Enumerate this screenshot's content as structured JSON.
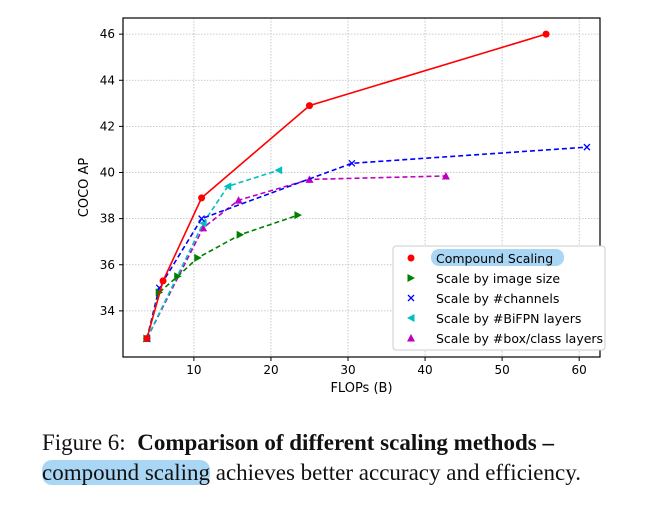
{
  "chart_data": {
    "type": "line",
    "xlabel": "FLOPs (B)",
    "ylabel": "COCO AP",
    "xlim": [
      0.8,
      62.7
    ],
    "ylim": [
      32.0,
      46.7
    ],
    "xticks": [
      10,
      20,
      30,
      40,
      50,
      60
    ],
    "yticks": [
      34,
      36,
      38,
      40,
      42,
      44,
      46
    ],
    "grid": true,
    "legend_position": "bottom-right",
    "series": [
      {
        "name": "Compound Scaling",
        "color": "#ff0000",
        "marker": "circle",
        "dash": false,
        "x": [
          3.9,
          6.0,
          11.0,
          25.0,
          55.7
        ],
        "y": [
          32.8,
          35.3,
          38.9,
          42.9,
          46.0
        ]
      },
      {
        "name": "Scale by image size",
        "color": "#008000",
        "marker": "triangle-right",
        "dash": true,
        "x": [
          3.9,
          5.5,
          7.9,
          10.5,
          16.0,
          23.5
        ],
        "y": [
          32.8,
          34.8,
          35.5,
          36.3,
          37.3,
          38.15
        ]
      },
      {
        "name": "Scale by #channels",
        "color": "#0000ff",
        "marker": "x",
        "dash": true,
        "x": [
          3.9,
          5.5,
          11.0,
          30.5,
          61.0
        ],
        "y": [
          32.8,
          35.0,
          38.0,
          40.4,
          41.1
        ]
      },
      {
        "name": "Scale by #BiFPN layers",
        "color": "#00bfbf",
        "marker": "triangle-left",
        "dash": true,
        "x": [
          3.9,
          11.2,
          14.4,
          21.0
        ],
        "y": [
          32.8,
          37.8,
          39.4,
          40.1
        ]
      },
      {
        "name": "Scale by #box/class layers",
        "color": "#bf00bf",
        "marker": "triangle-up",
        "dash": true,
        "x": [
          3.9,
          11.2,
          15.8,
          25.0,
          42.7
        ],
        "y": [
          32.8,
          37.6,
          38.8,
          39.7,
          39.85
        ]
      }
    ],
    "highlight_color": "#aad6f5"
  },
  "caption": {
    "label": "Figure 6:",
    "bold": "Comparison of different scaling methods –",
    "highlight": "compound scaling",
    "rest": " achieves better accuracy and efficiency."
  }
}
